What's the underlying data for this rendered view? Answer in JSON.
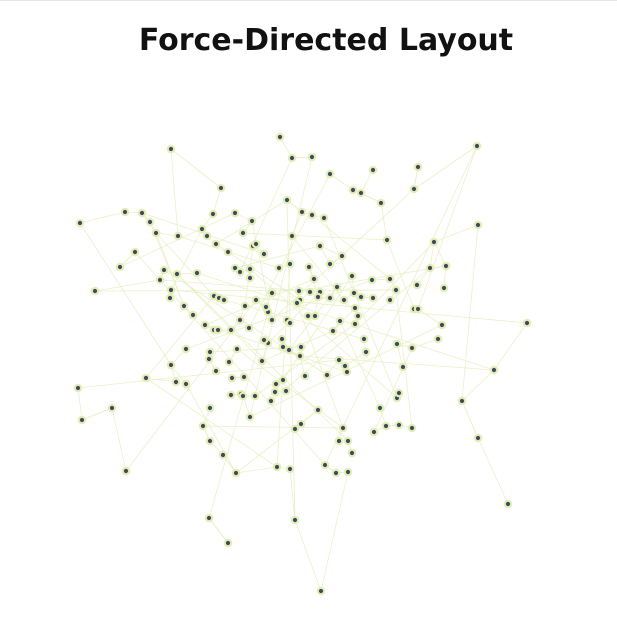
{
  "title": "Force-Directed Layout",
  "colors": {
    "node_fill": "#3b4a6b",
    "node_stroke": "#e4eeb0",
    "edge": "#e6f0c2",
    "title": "#111111"
  },
  "graph": {
    "node_count": 194,
    "edges_approx": 250
  }
}
